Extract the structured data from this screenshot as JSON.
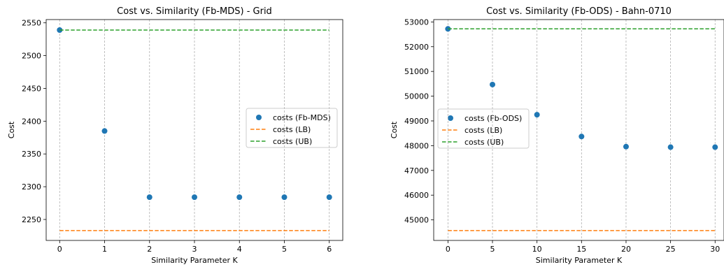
{
  "chart_data": [
    {
      "type": "scatter",
      "title": "Cost vs. Similarity  (Fb-MDS) - Grid",
      "xlabel": "Similarity Parameter K",
      "ylabel": "Cost",
      "xlim": [
        -0.3,
        6.3
      ],
      "ylim": [
        2218,
        2555
      ],
      "xticks": [
        0,
        1,
        2,
        3,
        4,
        5,
        6
      ],
      "yticks": [
        2250,
        2300,
        2350,
        2400,
        2450,
        2500,
        2550
      ],
      "grid": "vertical dashed",
      "legend_position": "right",
      "series": [
        {
          "name": "costs (Fb-MDS)",
          "kind": "points",
          "color": "#1f77b4",
          "x": [
            0,
            1,
            2,
            3,
            4,
            5,
            6
          ],
          "y": [
            2539,
            2385,
            2284,
            2284,
            2284,
            2284,
            2284
          ]
        },
        {
          "name": "costs (LB)",
          "kind": "dashed-line",
          "color": "#ff7f0e",
          "x": [
            0,
            6
          ],
          "y": [
            2233,
            2233
          ]
        },
        {
          "name": "costs (UB)",
          "kind": "dashed-line",
          "color": "#2ca02c",
          "x": [
            0,
            6
          ],
          "y": [
            2539,
            2539
          ]
        }
      ]
    },
    {
      "type": "scatter",
      "title": "Cost vs. Similarity  (Fb-ODS) - Bahn-0710",
      "xlabel": "Similarity Parameter K",
      "ylabel": "Cost",
      "xlim": [
        -1.6,
        31.0
      ],
      "ylim": [
        44170,
        53095
      ],
      "xticks": [
        0,
        5,
        10,
        15,
        20,
        25,
        30
      ],
      "yticks": [
        45000,
        46000,
        47000,
        48000,
        49000,
        50000,
        51000,
        52000,
        53000
      ],
      "grid": "vertical dashed",
      "legend_position": "center-left",
      "series": [
        {
          "name": "costs (Fb-ODS)",
          "kind": "points",
          "color": "#1f77b4",
          "x": [
            0,
            5,
            10,
            15,
            20,
            25,
            30
          ],
          "y": [
            52720,
            50470,
            49250,
            48370,
            47960,
            47940,
            47940
          ]
        },
        {
          "name": "costs (LB)",
          "kind": "dashed-line",
          "color": "#ff7f0e",
          "x": [
            0,
            30
          ],
          "y": [
            44570,
            44570
          ]
        },
        {
          "name": "costs (UB)",
          "kind": "dashed-line",
          "color": "#2ca02c",
          "x": [
            0,
            30
          ],
          "y": [
            52720,
            52720
          ]
        }
      ]
    }
  ]
}
